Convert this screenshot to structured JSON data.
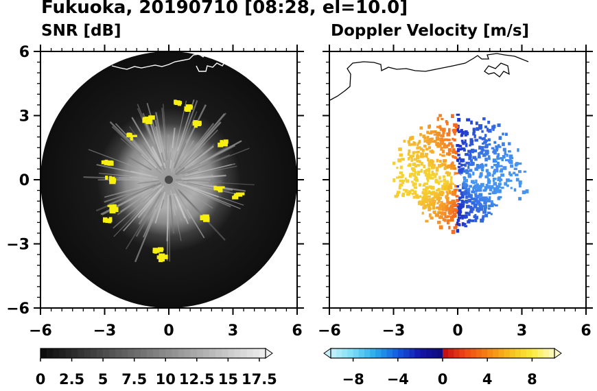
{
  "figure": {
    "title": "Fukuoka, 20190710 [08:28, el=10.0]"
  },
  "chart_data": [
    {
      "type": "heatmap",
      "title": "SNR [dB]",
      "description_free": true,
      "xlim": [
        -6,
        6
      ],
      "ylim": [
        -6,
        6
      ],
      "x_ticks": [
        "−6",
        "−3",
        "0",
        "3",
        "6"
      ],
      "y_ticks": [
        "6",
        "3",
        "0",
        "−3",
        "−6"
      ],
      "colorbar": {
        "min": 0,
        "max": 18,
        "step": 0.5,
        "extend": "max",
        "labels": [
          "0",
          "2.5",
          "5",
          "7.5",
          "10",
          "12.5",
          "15",
          "17.5"
        ],
        "label_values": [
          0,
          2.5,
          5,
          7.5,
          10,
          12.5,
          15,
          17.5
        ]
      },
      "range_ring_radius": 6,
      "yellow_echoes": [
        {
          "x": 0.45,
          "y": 3.6
        },
        {
          "x": 0.9,
          "y": 3.45
        },
        {
          "x": -1.0,
          "y": 2.85
        },
        {
          "x": 1.35,
          "y": 2.65
        },
        {
          "x": -1.75,
          "y": 2.05
        },
        {
          "x": 2.5,
          "y": 1.75
        },
        {
          "x": -2.9,
          "y": 0.85
        },
        {
          "x": -2.75,
          "y": 0.05
        },
        {
          "x": 2.35,
          "y": -0.4
        },
        {
          "x": 3.2,
          "y": -0.75
        },
        {
          "x": -2.65,
          "y": -1.3
        },
        {
          "x": -2.85,
          "y": -1.9
        },
        {
          "x": 1.65,
          "y": -1.75
        },
        {
          "x": -0.5,
          "y": -3.3
        },
        {
          "x": -0.3,
          "y": -3.6
        }
      ]
    },
    {
      "type": "heatmap",
      "title": "Doppler Velocity [m/s]",
      "xlim": [
        -6,
        6
      ],
      "ylim": [
        -6,
        6
      ],
      "x_ticks": [
        "−6",
        "−3",
        "0",
        "3",
        "6"
      ],
      "y_ticks": [],
      "colorbar": {
        "min": -10,
        "max": 10,
        "step": 0.5,
        "extend": "both",
        "labels": [
          "−8",
          "−4",
          "0",
          "4",
          "8"
        ],
        "label_values": [
          -8,
          -4,
          0,
          4,
          8
        ]
      },
      "echo_extent_radius": 3.0
    }
  ],
  "colors": {
    "positive_velocity": "#e8431a",
    "negative_velocity": "#1f3fd6",
    "echo_highlight": "#f7ef12",
    "coastline_left": "#ffffff",
    "coastline_right": "#000000"
  }
}
